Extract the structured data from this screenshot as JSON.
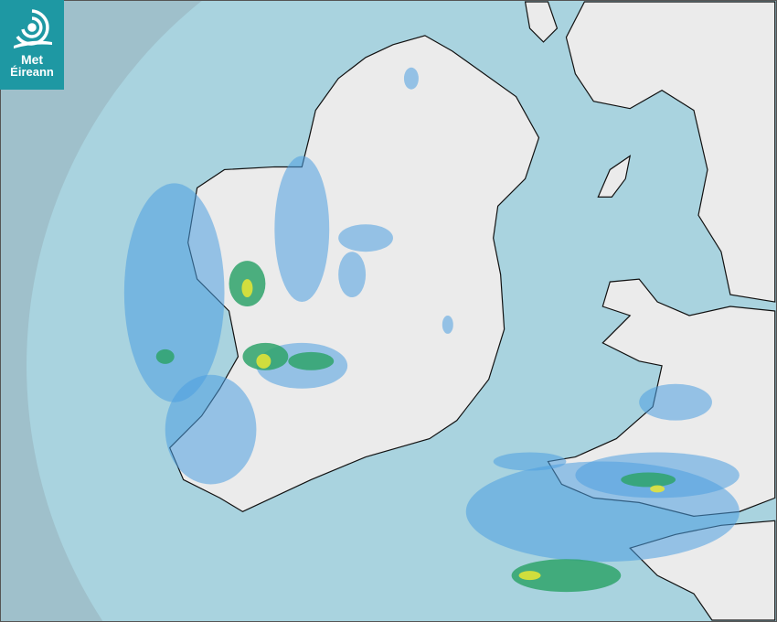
{
  "logo": {
    "line1": "Met",
    "line2": "Éireann"
  },
  "map": {
    "type": "rainfall radar",
    "colors": {
      "outside_range": "#9fc0cb",
      "sea": "#a9d3df",
      "land": "#ececec",
      "rain_light": "#4d9fe0",
      "rain_moderate": "#2fa36b",
      "rain_heavy": "#e9e633",
      "rain_very_heavy": "#f0a020"
    }
  }
}
